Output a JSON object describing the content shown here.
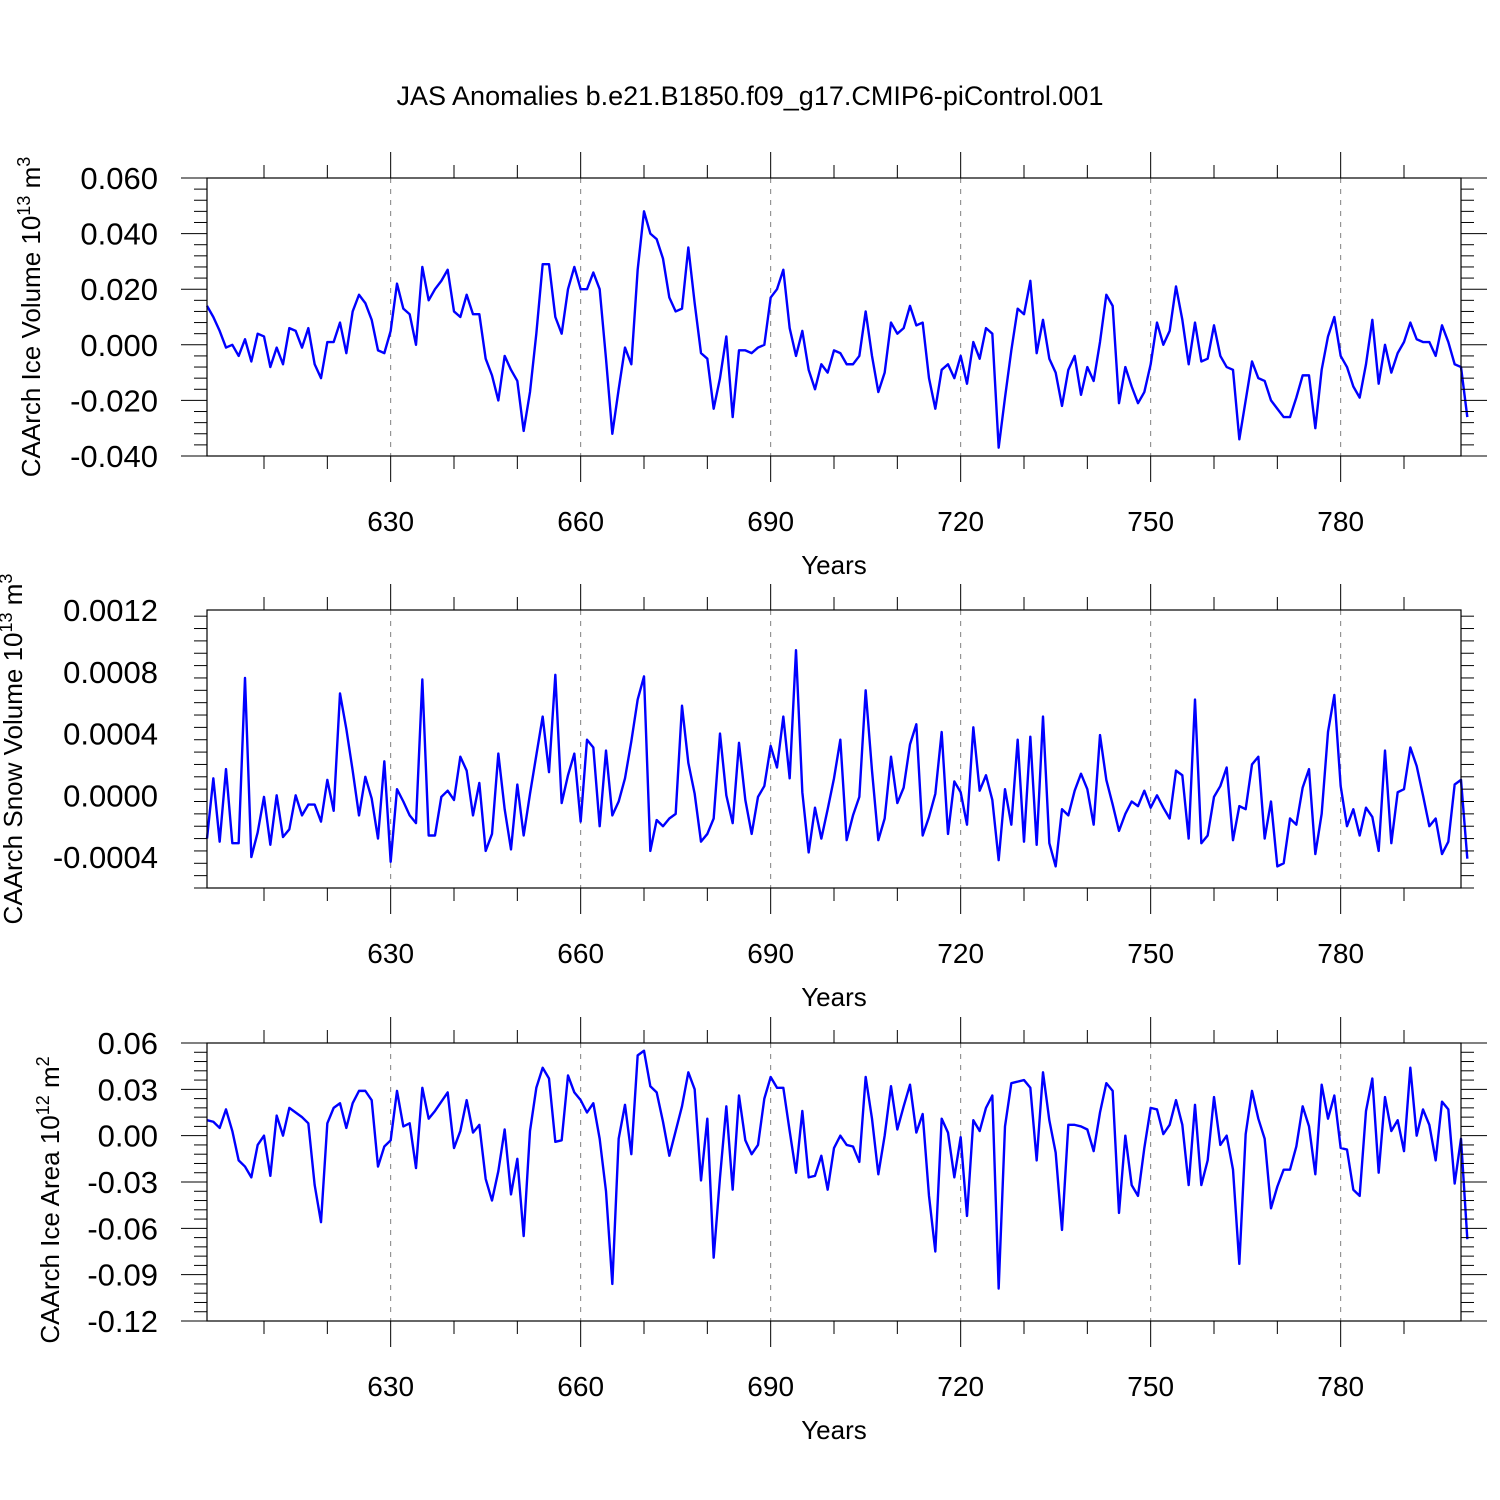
{
  "title": "JAS Anomalies b.e21.B1850.f09_g17.CMIP6-piControl.001",
  "line_color": "#0000ff",
  "chart_data": [
    {
      "type": "line",
      "title": "JAS Anomalies b.e21.B1850.f09_g17.CMIP6-piControl.001",
      "xlabel": "Years",
      "ylabel": "CAArch Ice Volume 10",
      "ylabel_exp": "13",
      "ylabel_unit": " m",
      "ylabel_unit_exp": "3",
      "xlim": [
        601,
        799
      ],
      "ylim": [
        -0.04,
        0.06
      ],
      "x_ticks": [
        630,
        660,
        690,
        720,
        750,
        780
      ],
      "x_tick_labels": [
        "630",
        "660",
        "690",
        "720",
        "750",
        "780"
      ],
      "y_ticks": [
        -0.04,
        -0.02,
        0.0,
        0.02,
        0.04,
        0.06
      ],
      "y_tick_labels": [
        "-0.040",
        "-0.020",
        "0.000",
        "0.020",
        "0.040",
        "0.060"
      ],
      "grid": "vertical dashed at major x ticks",
      "x_start": 601,
      "series": [
        {
          "values": [
            0.014,
            0.01,
            0.005,
            -0.001,
            0.0,
            -0.004,
            0.002,
            -0.006,
            0.004,
            0.003,
            -0.008,
            -0.001,
            -0.007,
            0.006,
            0.005,
            -0.001,
            0.006,
            -0.007,
            -0.012,
            0.001,
            0.001,
            0.008,
            -0.003,
            0.012,
            0.018,
            0.015,
            0.009,
            -0.002,
            -0.003,
            0.005,
            0.022,
            0.013,
            0.011,
            0.0,
            0.028,
            0.016,
            0.02,
            0.023,
            0.027,
            0.012,
            0.01,
            0.018,
            0.011,
            0.011,
            -0.005,
            -0.011,
            -0.02,
            -0.004,
            -0.009,
            -0.013,
            -0.031,
            -0.017,
            0.004,
            0.029,
            0.029,
            0.01,
            0.004,
            0.02,
            0.028,
            0.02,
            0.02,
            0.026,
            0.02,
            -0.005,
            -0.032,
            -0.016,
            -0.001,
            -0.007,
            0.027,
            0.048,
            0.04,
            0.038,
            0.031,
            0.017,
            0.012,
            0.013,
            0.035,
            0.015,
            -0.003,
            -0.005,
            -0.023,
            -0.012,
            0.003,
            -0.026,
            -0.002,
            -0.002,
            -0.003,
            -0.001,
            0.0,
            0.017,
            0.02,
            0.027,
            0.006,
            -0.004,
            0.005,
            -0.009,
            -0.016,
            -0.007,
            -0.01,
            -0.002,
            -0.003,
            -0.007,
            -0.007,
            -0.004,
            0.012,
            -0.004,
            -0.017,
            -0.01,
            0.008,
            0.004,
            0.006,
            0.014,
            0.007,
            0.008,
            -0.012,
            -0.023,
            -0.009,
            -0.007,
            -0.012,
            -0.004,
            -0.014,
            0.001,
            -0.005,
            0.006,
            0.004,
            -0.037,
            -0.019,
            -0.002,
            0.013,
            0.011,
            0.023,
            -0.003,
            0.009,
            -0.005,
            -0.01,
            -0.022,
            -0.009,
            -0.004,
            -0.018,
            -0.008,
            -0.013,
            0.001,
            0.018,
            0.014,
            -0.021,
            -0.008,
            -0.015,
            -0.021,
            -0.017,
            -0.007,
            0.008,
            0.0,
            0.005,
            0.021,
            0.009,
            -0.007,
            0.008,
            -0.006,
            -0.005,
            0.007,
            -0.004,
            -0.008,
            -0.009,
            -0.034,
            -0.02,
            -0.006,
            -0.012,
            -0.013,
            -0.02,
            -0.023,
            -0.026,
            -0.026,
            -0.019,
            -0.011,
            -0.011,
            -0.03,
            -0.009,
            0.003,
            0.01,
            -0.004,
            -0.008,
            -0.015,
            -0.019,
            -0.007,
            0.009,
            -0.014,
            0.0,
            -0.01,
            -0.003,
            0.001,
            0.008,
            0.002,
            0.001,
            0.001,
            -0.004,
            0.007,
            0.001,
            -0.007,
            -0.008,
            -0.026
          ]
        }
      ]
    },
    {
      "type": "line",
      "xlabel": "Years",
      "ylabel": "CAArch Snow Volume 10",
      "ylabel_exp": "13",
      "ylabel_unit": " m",
      "ylabel_unit_exp": "3",
      "xlim": [
        601,
        799
      ],
      "ylim": [
        -0.0006,
        0.0012
      ],
      "x_ticks": [
        630,
        660,
        690,
        720,
        750,
        780
      ],
      "x_tick_labels": [
        "630",
        "660",
        "690",
        "720",
        "750",
        "780"
      ],
      "y_ticks": [
        -0.0004,
        0.0,
        0.0004,
        0.0008,
        0.0012
      ],
      "y_tick_labels": [
        "-0.0004",
        "0.0000",
        "0.0004",
        "0.0008",
        "0.0012"
      ],
      "grid": "vertical dashed at major x ticks",
      "x_start": 601,
      "series": [
        {
          "values": [
            -0.00028,
            0.00011,
            -0.0003,
            0.00017,
            -0.00031,
            -0.00031,
            0.00076,
            -0.0004,
            -0.00024,
            -1e-05,
            -0.00032,
            0.0,
            -0.00027,
            -0.00022,
            0.0,
            -0.00013,
            -6e-05,
            -6e-05,
            -0.00017,
            0.0001,
            -0.0001,
            0.00066,
            0.00043,
            0.00016,
            -0.00013,
            0.00012,
            -2e-05,
            -0.00028,
            0.00022,
            -0.00043,
            4e-05,
            -4e-05,
            -0.00013,
            -0.00018,
            0.00075,
            -0.00026,
            -0.00026,
            -1e-05,
            3e-05,
            -3e-05,
            0.00025,
            0.00016,
            -0.00013,
            8e-05,
            -0.00036,
            -0.00025,
            0.00027,
            -9e-05,
            -0.00035,
            7e-05,
            -0.00026,
            1e-05,
            0.00026,
            0.00051,
            0.00015,
            0.00078,
            -5e-05,
            0.00013,
            0.00027,
            -0.00017,
            0.00036,
            0.00031,
            -0.0002,
            0.00029,
            -0.00013,
            -4e-05,
            0.00011,
            0.00035,
            0.00062,
            0.00077,
            -0.00036,
            -0.00016,
            -0.0002,
            -0.00015,
            -0.00012,
            0.00058,
            0.00021,
            1e-05,
            -0.0003,
            -0.00025,
            -0.00015,
            0.0004,
            0.0,
            -0.00018,
            0.00034,
            -3e-05,
            -0.00025,
            -1e-05,
            6e-05,
            0.00032,
            0.00018,
            0.00051,
            0.00011,
            0.00094,
            2e-05,
            -0.00037,
            -8e-05,
            -0.00028,
            -9e-05,
            0.00011,
            0.00036,
            -0.00029,
            -0.00013,
            -1e-05,
            0.00068,
            0.00016,
            -0.00029,
            -0.00015,
            0.00025,
            -5e-05,
            5e-05,
            0.00033,
            0.00046,
            -0.00026,
            -0.00014,
            1e-05,
            0.00041,
            -0.00025,
            9e-05,
            2e-05,
            -0.00019,
            0.00044,
            3e-05,
            0.00013,
            -3e-05,
            -0.00042,
            4e-05,
            -0.00019,
            0.00036,
            -0.0003,
            0.00038,
            -0.00032,
            0.00051,
            -0.00031,
            -0.00046,
            -9e-05,
            -0.00013,
            3e-05,
            0.00014,
            4e-05,
            -0.00019,
            0.00039,
            0.0001,
            -6e-05,
            -0.00023,
            -0.00012,
            -4e-05,
            -7e-05,
            3e-05,
            -8e-05,
            0.0,
            -8e-05,
            -0.00015,
            0.00016,
            0.00013,
            -0.00028,
            0.00062,
            -0.00031,
            -0.00026,
            -1e-05,
            6e-05,
            0.00018,
            -0.00029,
            -7e-05,
            -9e-05,
            0.0002,
            0.00025,
            -0.00028,
            -4e-05,
            -0.00046,
            -0.00044,
            -0.00015,
            -0.00019,
            5e-05,
            0.00017,
            -0.00038,
            -0.00012,
            0.00041,
            0.00065,
            6e-05,
            -0.0002,
            -9e-05,
            -0.00026,
            -8e-05,
            -0.00014,
            -0.00036,
            0.00029,
            -0.00031,
            2e-05,
            4e-05,
            0.00031,
            0.00019,
            0.0,
            -0.0002,
            -0.00015,
            -0.00038,
            -0.0003,
            7e-05,
            0.0001,
            -0.00041
          ]
        }
      ]
    },
    {
      "type": "line",
      "xlabel": "Years",
      "ylabel": "CAArch Ice Area 10",
      "ylabel_exp": "12",
      "ylabel_unit": " m",
      "ylabel_unit_exp": "2",
      "xlim": [
        601,
        799
      ],
      "ylim": [
        -0.12,
        0.06
      ],
      "x_ticks": [
        630,
        660,
        690,
        720,
        750,
        780
      ],
      "x_tick_labels": [
        "630",
        "660",
        "690",
        "720",
        "750",
        "780"
      ],
      "y_ticks": [
        -0.12,
        -0.09,
        -0.06,
        -0.03,
        0.0,
        0.03,
        0.06
      ],
      "y_tick_labels": [
        "-0.12",
        "-0.09",
        "-0.06",
        "-0.03",
        "0.00",
        "0.03",
        "0.06"
      ],
      "grid": "vertical dashed at major x ticks",
      "x_start": 601,
      "series": [
        {
          "values": [
            0.01,
            0.009,
            0.005,
            0.017,
            0.003,
            -0.016,
            -0.02,
            -0.027,
            -0.006,
            0.0,
            -0.026,
            0.013,
            0.0,
            0.018,
            0.015,
            0.012,
            0.008,
            -0.032,
            -0.056,
            0.008,
            0.018,
            0.021,
            0.005,
            0.021,
            0.029,
            0.029,
            0.023,
            -0.02,
            -0.007,
            -0.003,
            0.029,
            0.006,
            0.008,
            -0.021,
            0.031,
            0.011,
            0.016,
            0.022,
            0.028,
            -0.008,
            0.003,
            0.023,
            0.002,
            0.007,
            -0.028,
            -0.042,
            -0.023,
            0.004,
            -0.038,
            -0.015,
            -0.065,
            0.003,
            0.031,
            0.044,
            0.037,
            -0.004,
            -0.003,
            0.039,
            0.028,
            0.023,
            0.015,
            0.021,
            -0.002,
            -0.036,
            -0.096,
            -0.002,
            0.02,
            -0.012,
            0.052,
            0.055,
            0.032,
            0.028,
            0.009,
            -0.013,
            0.003,
            0.019,
            0.041,
            0.03,
            -0.029,
            0.011,
            -0.079,
            -0.027,
            0.019,
            -0.035,
            0.026,
            -0.003,
            -0.012,
            -0.006,
            0.024,
            0.038,
            0.031,
            0.031,
            0.003,
            -0.024,
            0.016,
            -0.027,
            -0.026,
            -0.013,
            -0.035,
            -0.008,
            0.0,
            -0.006,
            -0.007,
            -0.017,
            0.038,
            0.011,
            -0.025,
            0.0,
            0.032,
            0.004,
            0.019,
            0.033,
            0.002,
            0.014,
            -0.039,
            -0.075,
            0.011,
            0.002,
            -0.027,
            -0.001,
            -0.052,
            0.01,
            0.003,
            0.018,
            0.026,
            -0.099,
            0.006,
            0.034,
            0.035,
            0.036,
            0.031,
            -0.016,
            0.041,
            0.01,
            -0.011,
            -0.061,
            0.007,
            0.007,
            0.006,
            0.004,
            -0.01,
            0.015,
            0.034,
            0.029,
            -0.05,
            0.0,
            -0.032,
            -0.039,
            -0.008,
            0.018,
            0.017,
            0.001,
            0.007,
            0.023,
            0.007,
            -0.032,
            0.02,
            -0.032,
            -0.016,
            0.025,
            -0.006,
            0.0,
            -0.022,
            -0.083,
            0.001,
            0.029,
            0.011,
            -0.002,
            -0.047,
            -0.033,
            -0.022,
            -0.022,
            -0.007,
            0.019,
            0.006,
            -0.025,
            0.033,
            0.011,
            0.026,
            -0.008,
            -0.009,
            -0.035,
            -0.039,
            0.016,
            0.037,
            -0.024,
            0.025,
            0.003,
            0.01,
            -0.01,
            0.044,
            0.0,
            0.017,
            0.007,
            -0.016,
            0.022,
            0.017,
            -0.031,
            -0.002,
            -0.067
          ]
        }
      ]
    }
  ]
}
